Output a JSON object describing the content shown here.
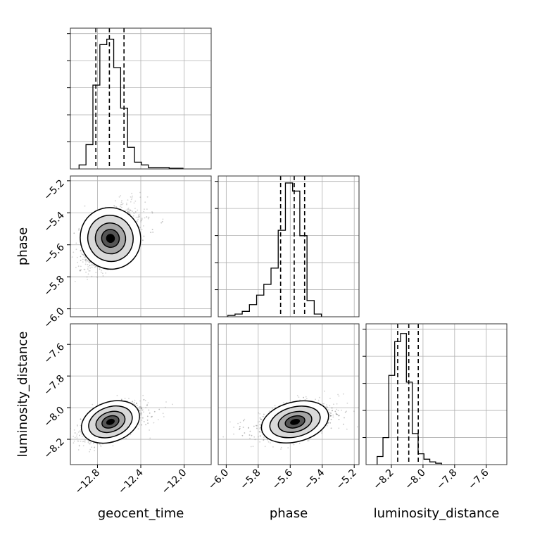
{
  "chart_data": {
    "type": "corner",
    "parameters": [
      "geocent_time",
      "phase",
      "luminosity_distance"
    ],
    "ranges": {
      "geocent_time": [
        -13.05,
        -11.75
      ],
      "phase": [
        -6.05,
        -5.17
      ],
      "luminosity_distance": [
        -8.36,
        -7.47
      ]
    },
    "ticks": {
      "geocent_time": [
        -12.8,
        -12.4,
        -12.0
      ],
      "phase": [
        -6.0,
        -5.8,
        -5.6,
        -5.4,
        -5.2
      ],
      "luminosity_distance": [
        -8.2,
        -8.0,
        -7.8,
        -7.6
      ]
    },
    "tick_labels": {
      "geocent_time": [
        "−12.8",
        "−12.4",
        "−12.0"
      ],
      "phase": [
        "−6.0",
        "−5.8",
        "−5.6",
        "−5.4",
        "−5.2"
      ],
      "luminosity_distance": [
        "−8.2",
        "−8.0",
        "−7.8",
        "−7.6"
      ]
    },
    "histograms": {
      "geocent_time": {
        "edges_start": -12.97,
        "bin_width": 0.064,
        "counts": [
          0.03,
          0.18,
          0.62,
          0.92,
          0.96,
          0.75,
          0.45,
          0.16,
          0.05,
          0.03,
          0.01,
          0.01,
          0.01,
          0.005,
          0.005
        ],
        "quantiles": [
          -12.815,
          -12.69,
          -12.555
        ],
        "ymax": 1.0
      },
      "phase": {
        "edges_start": -5.99,
        "bin_width": 0.045,
        "counts": [
          0.01,
          0.02,
          0.04,
          0.09,
          0.16,
          0.24,
          0.36,
          0.64,
          0.99,
          0.93,
          0.6,
          0.12,
          0.02
        ],
        "quantiles": [
          -5.66,
          -5.575,
          -5.51
        ],
        "ymax": 1.0
      },
      "luminosity_distance": {
        "edges_start": -8.29,
        "bin_width": 0.037,
        "counts": [
          0.06,
          0.2,
          0.66,
          0.91,
          0.97,
          0.61,
          0.23,
          0.08,
          0.04,
          0.02,
          0.01
        ],
        "quantiles": [
          -8.16,
          -8.09,
          -8.03
        ],
        "ymax": 1.0
      }
    },
    "joint": [
      {
        "x": "geocent_time",
        "y": "phase",
        "mean": [
          -12.68,
          -5.56
        ],
        "sd": [
          0.11,
          0.085
        ],
        "rho": 0.55
      },
      {
        "x": "geocent_time",
        "y": "luminosity_distance",
        "mean": [
          -12.68,
          -8.09
        ],
        "sd": [
          0.11,
          0.055
        ],
        "rho": 0.55
      },
      {
        "x": "phase",
        "y": "luminosity_distance",
        "mean": [
          -5.57,
          -8.09
        ],
        "sd": [
          0.085,
          0.055
        ],
        "rho": 0.45
      }
    ],
    "grid": true,
    "xlabel_rotation_deg": 45
  }
}
